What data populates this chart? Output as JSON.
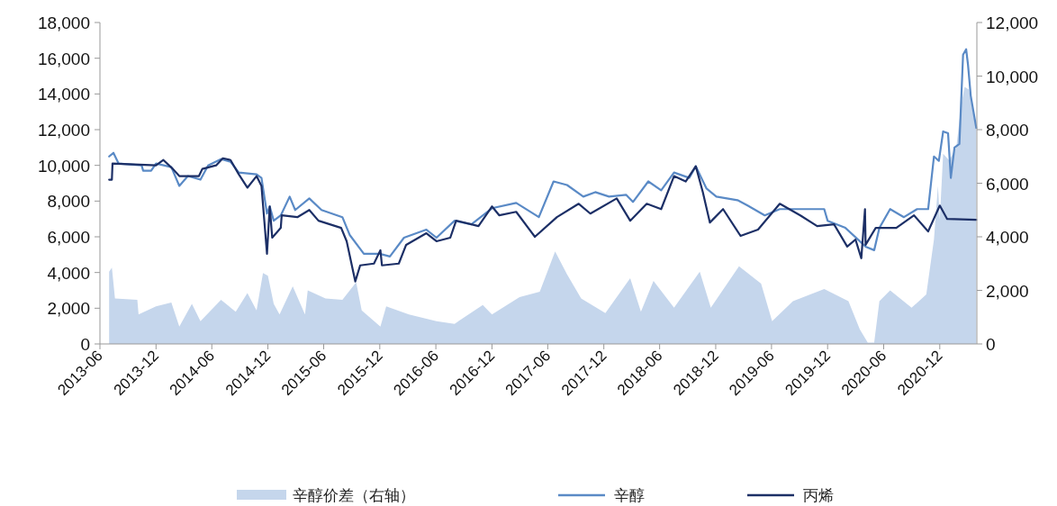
{
  "chart_data": {
    "type": "line",
    "legend": "bottom",
    "grid": false,
    "xlim": [
      "2013-06-01",
      "2021-04-01"
    ],
    "xticks": [
      "2013-06",
      "2013-12",
      "2014-06",
      "2014-12",
      "2015-06",
      "2015-12",
      "2016-06",
      "2016-12",
      "2017-06",
      "2017-12",
      "2018-06",
      "2018-12",
      "2019-06",
      "2019-12",
      "2020-06",
      "2020-12"
    ],
    "ylim": [
      0,
      18000
    ],
    "yticks": [
      0,
      {
        "value": 2000,
        "label": "2,000"
      },
      {
        "value": 4000,
        "label": "4,000"
      },
      {
        "value": 6000,
        "label": "6,000"
      },
      {
        "value": 8000,
        "label": "8,000"
      },
      {
        "value": 10000,
        "label": "10,000"
      },
      {
        "value": 12000,
        "label": "12,000"
      },
      {
        "value": 14000,
        "label": "14,000"
      },
      {
        "value": 16000,
        "label": "16,000"
      },
      {
        "value": 18000,
        "label": "18,000"
      }
    ],
    "y2lim": [
      0,
      12000
    ],
    "y2ticks": [
      0,
      {
        "value": 2000,
        "label": "2,000"
      },
      {
        "value": 4000,
        "label": "4,000"
      },
      {
        "value": 6000,
        "label": "6,000"
      },
      {
        "value": 8000,
        "label": "8,000"
      },
      {
        "value": 10000,
        "label": "10,000"
      },
      {
        "value": 12000,
        "label": "12,000"
      }
    ],
    "series": [
      {
        "name": "辛醇价差（右轴）",
        "type": "area",
        "axis": "y2",
        "color": "#c5d6ec",
        "x": [
          "2013-07-01",
          "2013-07-10",
          "2013-07-20",
          "2013-10-01",
          "2013-10-05",
          "2013-12-01",
          "2014-01-20",
          "2014-02-15",
          "2014-03-28",
          "2014-04-25",
          "2014-07-01",
          "2014-08-18",
          "2014-09-25",
          "2014-10-25",
          "2014-11-15",
          "2014-12-01",
          "2014-12-20",
          "2015-01-08",
          "2015-02-20",
          "2015-04-01",
          "2015-04-10",
          "2015-06-07",
          "2015-08-01",
          "2015-09-15",
          "2015-10-03",
          "2015-12-03",
          "2015-12-22",
          "2016-03-05",
          "2016-06-03",
          "2016-08-01",
          "2016-11-01",
          "2016-12-01",
          "2017-03-01",
          "2017-05-06",
          "2017-06-25",
          "2017-08-03",
          "2017-09-18",
          "2017-12-06",
          "2018-02-25",
          "2018-04-01",
          "2018-05-12",
          "2018-07-18",
          "2018-10-10",
          "2018-11-15",
          "2019-02-15",
          "2019-04-28",
          "2019-06-03",
          "2019-08-10",
          "2019-11-20",
          "2020-02-07",
          "2020-03-15",
          "2020-04-10",
          "2020-05-01",
          "2020-05-18",
          "2020-06-22",
          "2020-08-31",
          "2020-10-18",
          "2020-11-12",
          "2020-11-25",
          "2020-12-01",
          "2020-12-12",
          "2021-01-01",
          "2021-01-24",
          "2021-02-10",
          "2021-02-20",
          "2021-03-06",
          "2021-03-30"
        ],
        "values": [
          2700,
          2850,
          1700,
          1650,
          1100,
          1400,
          1550,
          650,
          1500,
          850,
          1650,
          1200,
          1900,
          1250,
          2650,
          2550,
          1500,
          1100,
          2150,
          1100,
          2000,
          1700,
          1650,
          2300,
          1250,
          650,
          1400,
          1100,
          850,
          750,
          1450,
          1100,
          1750,
          1950,
          3450,
          2600,
          1700,
          1150,
          2450,
          1200,
          2350,
          1350,
          2700,
          1350,
          2900,
          2250,
          850,
          1600,
          2050,
          1600,
          550,
          50,
          50,
          1600,
          2000,
          1350,
          1850,
          3900,
          5900,
          4650,
          7100,
          6850,
          7350,
          9000,
          9600,
          9500,
          8000
        ]
      },
      {
        "name": "辛醇",
        "color": "#5a8ac6",
        "x": [
          "2013-07-01",
          "2013-07-15",
          "2013-08-01",
          "2013-10-15",
          "2013-10-20",
          "2013-11-15",
          "2013-12-01",
          "2014-01-20",
          "2014-02-15",
          "2014-03-15",
          "2014-04-25",
          "2014-05-20",
          "2014-07-01",
          "2014-08-01",
          "2014-08-28",
          "2014-10-25",
          "2014-11-10",
          "2014-11-28",
          "2014-12-07",
          "2014-12-20",
          "2015-01-12",
          "2015-02-10",
          "2015-02-28",
          "2015-04-15",
          "2015-05-25",
          "2015-08-01",
          "2015-08-25",
          "2015-10-10",
          "2015-12-01",
          "2016-01-03",
          "2016-02-18",
          "2016-05-01",
          "2016-06-03",
          "2016-08-01",
          "2016-09-25",
          "2016-12-01",
          "2017-02-18",
          "2017-05-03",
          "2017-06-20",
          "2017-08-03",
          "2017-09-25",
          "2017-11-03",
          "2017-12-18",
          "2018-02-12",
          "2018-03-06",
          "2018-04-25",
          "2018-06-06",
          "2018-07-18",
          "2018-09-06",
          "2018-09-27",
          "2018-11-01",
          "2018-12-03",
          "2019-02-10",
          "2019-03-15",
          "2019-05-10",
          "2019-06-28",
          "2019-09-03",
          "2019-11-20",
          "2019-12-01",
          "2020-01-28",
          "2020-04-03",
          "2020-05-01",
          "2020-05-18",
          "2020-06-22",
          "2020-08-06",
          "2020-09-18",
          "2020-10-24",
          "2020-11-12",
          "2020-11-28",
          "2020-12-12",
          "2020-12-28",
          "2021-01-06",
          "2021-01-18",
          "2021-02-03",
          "2021-02-15",
          "2021-02-25",
          "2021-03-03",
          "2021-03-12",
          "2021-03-30"
        ],
        "values": [
          10500,
          10700,
          10100,
          10000,
          9700,
          9700,
          10100,
          9900,
          8850,
          9400,
          9200,
          10000,
          10350,
          10200,
          9600,
          9500,
          9300,
          7300,
          7700,
          6900,
          7200,
          8250,
          7500,
          8150,
          7500,
          7100,
          6100,
          5050,
          5050,
          4900,
          5950,
          6400,
          5950,
          6900,
          6700,
          7600,
          7900,
          7100,
          9100,
          8900,
          8250,
          8500,
          8250,
          8350,
          7950,
          9100,
          8600,
          9600,
          9300,
          9950,
          8700,
          8250,
          8050,
          7750,
          7200,
          7550,
          7550,
          7550,
          6900,
          6500,
          5450,
          5250,
          6500,
          7550,
          7100,
          7550,
          7550,
          10500,
          10250,
          11900,
          11800,
          9300,
          11000,
          11200,
          16200,
          16500,
          15650,
          13900,
          12100
        ]
      },
      {
        "name": "丙烯",
        "color": "#1c2f66",
        "x": [
          "2013-07-01",
          "2013-07-10",
          "2013-07-12",
          "2013-12-01",
          "2013-12-25",
          "2014-01-25",
          "2014-02-15",
          "2014-04-20",
          "2014-05-01",
          "2014-06-15",
          "2014-07-07",
          "2014-08-01",
          "2014-08-28",
          "2014-09-25",
          "2014-10-25",
          "2014-11-10",
          "2014-11-28",
          "2014-12-07",
          "2014-12-15",
          "2015-01-12",
          "2015-01-15",
          "2015-03-07",
          "2015-04-15",
          "2015-05-15",
          "2015-07-28",
          "2015-08-15",
          "2015-09-12",
          "2015-09-28",
          "2015-11-12",
          "2015-12-03",
          "2015-12-08",
          "2016-02-01",
          "2016-02-25",
          "2016-05-01",
          "2016-06-03",
          "2016-07-18",
          "2016-08-06",
          "2016-10-18",
          "2016-12-01",
          "2016-12-25",
          "2017-02-18",
          "2017-04-20",
          "2017-07-01",
          "2017-09-10",
          "2017-10-18",
          "2018-01-12",
          "2018-02-25",
          "2018-04-20",
          "2018-06-06",
          "2018-07-18",
          "2018-08-25",
          "2018-09-27",
          "2018-10-20",
          "2018-11-12",
          "2018-12-25",
          "2019-02-20",
          "2019-04-18",
          "2019-06-28",
          "2019-09-03",
          "2019-10-28",
          "2019-12-22",
          "2020-02-03",
          "2020-03-01",
          "2020-03-20",
          "2020-04-01",
          "2020-04-03",
          "2020-05-06",
          "2020-07-12",
          "2020-09-08",
          "2020-10-24",
          "2020-12-01",
          "2020-12-25",
          "2021-03-30"
        ],
        "values": [
          9200,
          9200,
          10100,
          10000,
          10300,
          9800,
          9400,
          9400,
          9800,
          10000,
          10400,
          10300,
          9500,
          8750,
          9400,
          8850,
          5050,
          7700,
          5950,
          6500,
          7200,
          7100,
          7500,
          6900,
          6500,
          5750,
          3500,
          4400,
          4500,
          5250,
          4400,
          4500,
          5550,
          6200,
          5750,
          5950,
          6900,
          6600,
          7700,
          7200,
          7400,
          6000,
          7100,
          7850,
          7300,
          8150,
          6900,
          7850,
          7550,
          9400,
          9100,
          9950,
          8500,
          6800,
          7550,
          6050,
          6400,
          7850,
          7200,
          6600,
          6700,
          5450,
          5850,
          4800,
          7550,
          5550,
          6500,
          6500,
          7200,
          6300,
          7750,
          7000,
          6950
        ]
      }
    ]
  }
}
